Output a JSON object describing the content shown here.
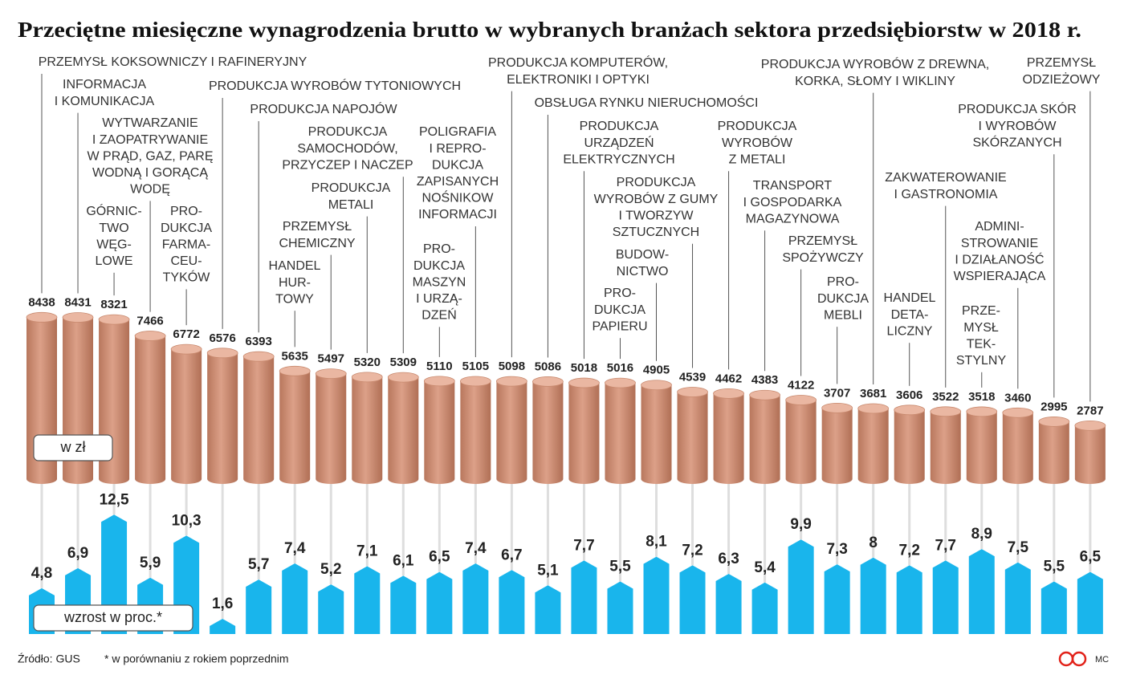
{
  "chart_data": {
    "type": "bar",
    "title": "Przeciętne miesięczne wynagrodzenia brutto w wybranych branżach sektora przedsiębiorstw w 2018 r.",
    "categories": [
      [
        "PRZEMYSŁ KOKSOWNICZY I RAFINERYJNY"
      ],
      [
        "INFORMACJA",
        "I KOMUNIKACJA"
      ],
      [
        "GÓRNIC-",
        "TWO",
        "WĘG-",
        "LOWE"
      ],
      [
        "WYTWARZANIE",
        "I ZAOPATRYWANIE",
        "W PRĄD, GAZ, PARĘ",
        "WODNĄ I GORĄCĄ",
        "WODĘ"
      ],
      [
        "PRO-",
        "DUKCJA",
        "FARMA-",
        "CEU-",
        "TYKÓW"
      ],
      [
        "PRODUKCJA WYROBÓW TYTONIOWYCH"
      ],
      [
        "PRODUKCJA NAPOJÓW"
      ],
      [
        "HANDEL",
        "HUR-",
        "TOWY"
      ],
      [
        "PRZEMYSŁ",
        "CHEMICZNY"
      ],
      [
        "PRODUKCJA",
        "METALI"
      ],
      [
        "PRODUKCJA",
        "SAMOCHODÓW,",
        "PRZYCZEP I NACZEP"
      ],
      [
        "PRO-",
        "DUKCJA",
        "MASZYN",
        "I URZĄ-",
        "DZEŃ"
      ],
      [
        "POLIGRAFIA",
        "I REPRO-",
        "DUKCJA",
        "ZAPISANYCH",
        "NOŚNIKOW",
        "INFORMACJI"
      ],
      [
        "PRODUKCJA KOMPUTERÓW,",
        "ELEKTRONIKI I OPTYKI"
      ],
      [
        "OBSŁUGA RYNKU NIERUCHOMOŚCI"
      ],
      [
        "PRODUKCJA",
        "URZĄDZEŃ",
        "ELEKTRYCZNYCH"
      ],
      [
        "PRO-",
        "DUKCJA",
        "PAPIERU"
      ],
      [
        "BUDOW-",
        "NICTWO"
      ],
      [
        "PRODUKCJA",
        "WYROBÓW Z GUMY",
        "I TWORZYW",
        "SZTUCZNYCH"
      ],
      [
        "PRODUKCJA",
        "WYROBÓW",
        "Z METALI"
      ],
      [
        "TRANSPORT",
        "I GOSPODARKA",
        "MAGAZYNOWA"
      ],
      [
        "PRZEMYSŁ",
        "SPOŻYWCZY"
      ],
      [
        "PRO-",
        "DUKCJA",
        "MEBLI"
      ],
      [
        "PRODUKCJA WYROBÓW Z DREWNA,",
        "KORKA, SŁOMY I WIKLINY"
      ],
      [
        "HANDEL",
        "DETA-",
        "LICZNY"
      ],
      [
        "ZAKWATEROWANIE",
        "I GASTRONOMIA"
      ],
      [
        "PRZE-",
        "MYSŁ",
        "TEK-",
        "STYLNY"
      ],
      [
        "ADMINI-",
        "STROWANIE",
        "I DZIAŁANOŚĆ",
        "WSPIERAJĄCA"
      ],
      [
        "PRODUKCJA SKÓR",
        "I WYROBÓW",
        "SKÓRZANYCH"
      ],
      [
        "PRZEMYSŁ",
        "ODZIEŻOWY"
      ]
    ],
    "series": [
      {
        "name": "w zł",
        "color": "#c8896e",
        "values": [
          8438,
          8431,
          8321,
          7466,
          6772,
          6576,
          6393,
          5635,
          5497,
          5320,
          5309,
          5110,
          5105,
          5098,
          5086,
          5018,
          5016,
          4905,
          4539,
          4462,
          4383,
          4122,
          3707,
          3681,
          3606,
          3522,
          3518,
          3460,
          2995,
          2787
        ]
      },
      {
        "name": "wzrost w proc.*",
        "color": "#19b5ec",
        "values": [
          4.8,
          6.9,
          12.5,
          5.9,
          10.3,
          1.6,
          5.7,
          7.4,
          5.2,
          7.1,
          6.1,
          6.5,
          7.4,
          6.7,
          5.1,
          7.7,
          5.5,
          8.1,
          7.2,
          6.3,
          5.4,
          9.9,
          7.3,
          8,
          7.2,
          7.7,
          8.9,
          7.5,
          5.5,
          6.5
        ],
        "value_labels": [
          "4,8",
          "6,9",
          "12,5",
          "5,9",
          "10,3",
          "1,6",
          "5,7",
          "7,4",
          "5,2",
          "7,1",
          "6,1",
          "6,5",
          "7,4",
          "6,7",
          "5,1",
          "7,7",
          "5,5",
          "8,1",
          "7,2",
          "6,3",
          "5,4",
          "9,9",
          "7,3",
          "8",
          "7,2",
          "7,7",
          "8,9",
          "7,5",
          "5,5",
          "6,5"
        ]
      }
    ],
    "source": "Źródło: GUS",
    "footnote": "* w porównaniu z rokiem poprzednim",
    "credit": "MC"
  }
}
